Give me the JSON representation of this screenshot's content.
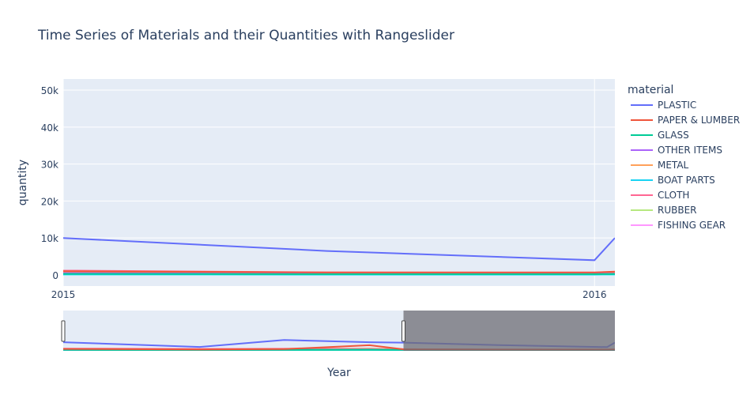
{
  "chart_data": {
    "type": "line",
    "title": "Time Series of Materials and their Quantities with Rangeslider",
    "xlabel": "Year",
    "ylabel": "quantity",
    "legend_title": "material",
    "legend_position": "right",
    "grid": true,
    "main_x_range": [
      "2015-01-01",
      "2016-01-15"
    ],
    "main_x_ticks": [
      {
        "value": "2015-01-01",
        "label": "2015"
      },
      {
        "value": "2016-01-01",
        "label": "2016"
      }
    ],
    "ylim": [
      -3000,
      53000
    ],
    "y_ticks": [
      {
        "value": 0,
        "label": "0"
      },
      {
        "value": 10000,
        "label": "10k"
      },
      {
        "value": 20000,
        "label": "20k"
      },
      {
        "value": 30000,
        "label": "30k"
      },
      {
        "value": 40000,
        "label": "40k"
      },
      {
        "value": 50000,
        "label": "50k"
      }
    ],
    "rangeslider": {
      "full_x_range": [
        "2013-05-01",
        "2016-01-15"
      ],
      "selected_range": [
        "2015-01-01",
        "2016-01-15"
      ],
      "y_range": [
        -1000,
        53000
      ]
    },
    "series": [
      {
        "name": "PLASTIC",
        "color": "#636efa",
        "x": [
          "2013-05-01",
          "2014-01-01",
          "2014-06-01",
          "2014-11-01",
          "2015-01-01",
          "2015-07-01",
          "2016-01-01",
          "2016-01-15"
        ],
        "y": [
          10500,
          4200,
          13500,
          10500,
          10000,
          6500,
          4000,
          10000
        ]
      },
      {
        "name": "PAPER & LUMBER",
        "color": "#EF553B",
        "x": [
          "2013-05-01",
          "2014-01-01",
          "2014-06-01",
          "2014-11-01",
          "2015-01-01",
          "2015-07-01",
          "2016-01-01",
          "2016-01-15"
        ],
        "y": [
          1500,
          800,
          1300,
          6500,
          1000,
          700,
          700,
          900
        ]
      },
      {
        "name": "GLASS",
        "color": "#00cc96",
        "x": [
          "2013-05-01",
          "2014-01-01",
          "2014-06-01",
          "2014-11-01",
          "2015-01-01",
          "2015-07-01",
          "2016-01-01",
          "2016-01-15"
        ],
        "y": [
          300,
          200,
          300,
          500,
          300,
          200,
          200,
          250
        ]
      },
      {
        "name": "OTHER ITEMS",
        "color": "#ab63fa",
        "x": [
          "2013-05-01",
          "2014-01-01",
          "2014-06-01",
          "2014-11-01",
          "2015-01-01",
          "2015-07-01",
          "2016-01-01",
          "2016-01-15"
        ],
        "y": [
          400,
          300,
          500,
          900,
          500,
          300,
          300,
          350
        ]
      },
      {
        "name": "METAL",
        "color": "#FFA15A",
        "x": [
          "2013-05-01",
          "2014-01-01",
          "2014-06-01",
          "2014-11-01",
          "2015-01-01",
          "2015-07-01",
          "2016-01-01",
          "2016-01-15"
        ],
        "y": [
          600,
          400,
          700,
          1800,
          900,
          500,
          500,
          600
        ]
      },
      {
        "name": "BOAT PARTS",
        "color": "#19d3f3",
        "x": [
          "2013-05-01",
          "2014-01-01",
          "2014-06-01",
          "2014-11-01",
          "2015-01-01",
          "2015-07-01",
          "2016-01-01",
          "2016-01-15"
        ],
        "y": [
          100,
          80,
          120,
          200,
          100,
          80,
          80,
          90
        ]
      },
      {
        "name": "CLOTH",
        "color": "#FF6692",
        "x": [
          "2013-05-01",
          "2014-01-01",
          "2014-06-01",
          "2014-11-01",
          "2015-01-01",
          "2015-07-01",
          "2016-01-01",
          "2016-01-15"
        ],
        "y": [
          2000,
          1500,
          1800,
          2000,
          1200,
          700,
          600,
          700
        ]
      },
      {
        "name": "RUBBER",
        "color": "#B6E880",
        "x": [
          "2013-05-01",
          "2014-01-01",
          "2014-06-01",
          "2014-11-01",
          "2015-01-01",
          "2015-07-01",
          "2016-01-01",
          "2016-01-15"
        ],
        "y": [
          200,
          150,
          250,
          400,
          200,
          150,
          150,
          180
        ]
      },
      {
        "name": "FISHING GEAR",
        "color": "#FF97FF",
        "x": [
          "2013-05-01",
          "2014-01-01",
          "2014-06-01",
          "2014-11-01",
          "2015-01-01",
          "2015-07-01",
          "2016-01-01",
          "2016-01-15"
        ],
        "y": [
          300,
          200,
          300,
          500,
          300,
          200,
          200,
          250
        ]
      }
    ]
  },
  "colors": {
    "plot_bg": "#e5ecf6",
    "grid": "#ffffff",
    "text": "#2a3f5f",
    "mask": "#6e6e74"
  }
}
